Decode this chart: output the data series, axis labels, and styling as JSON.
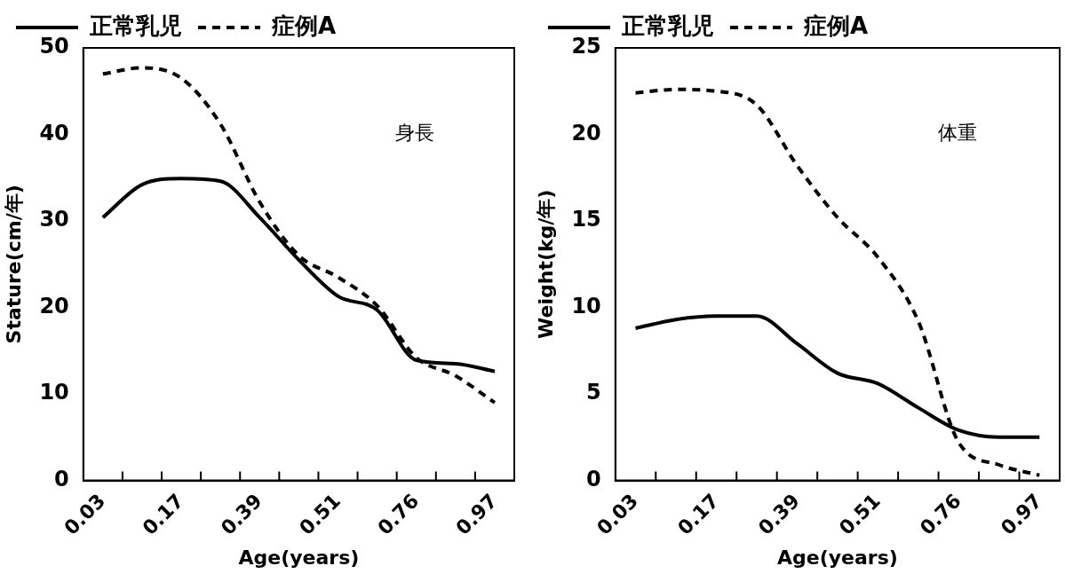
{
  "chart_data": [
    {
      "type": "line",
      "xlabel": "Age(years)",
      "ylabel": "Stature(cm/年)",
      "annotations": [
        "身長"
      ],
      "legend": "top",
      "grid": false,
      "marker": "none",
      "categories": [
        "0.03",
        null,
        "0.17",
        null,
        "0.39",
        null,
        "0.51",
        null,
        "0.76",
        null,
        "0.97"
      ],
      "ylim": [
        0,
        50
      ],
      "yticks": [
        0,
        10,
        20,
        30,
        40,
        50
      ],
      "series": [
        {
          "name": "正常乳児",
          "color": "#000000",
          "line_style": "solid",
          "values": [
            30.4,
            34.2,
            34.9,
            34.6,
            30.4,
            25.5,
            21.3,
            19.7,
            13.9,
            13.5,
            12.6
          ]
        },
        {
          "name": "症例A",
          "color": "#000000",
          "line_style": "dashed",
          "values": [
            47,
            47.7,
            46.5,
            41.2,
            32.2,
            26,
            23.5,
            20.2,
            14.2,
            12.1,
            9
          ]
        }
      ]
    },
    {
      "type": "line",
      "xlabel": "Age(years)",
      "ylabel": "Weight(kg/年)",
      "annotations": [
        "体重"
      ],
      "legend": "top",
      "grid": false,
      "marker": "none",
      "categories": [
        "0.03",
        null,
        "0.17",
        null,
        "0.39",
        null,
        "0.51",
        null,
        "0.76",
        null,
        "0.97"
      ],
      "ylim": [
        0,
        25
      ],
      "yticks": [
        0,
        5,
        10,
        15,
        20,
        25
      ],
      "series": [
        {
          "name": "正常乳児",
          "color": "#000000",
          "line_style": "solid",
          "values": [
            8.8,
            9.3,
            9.5,
            9.5,
            7.9,
            6.2,
            5.6,
            4.2,
            2.9,
            2.5,
            2.5
          ]
        },
        {
          "name": "症例A",
          "color": "#000000",
          "line_style": "dashed",
          "values": [
            22.4,
            22.6,
            22.5,
            21.7,
            18.2,
            15.2,
            12.9,
            9.2,
            2.2,
            0.9,
            0.3
          ]
        }
      ]
    }
  ]
}
